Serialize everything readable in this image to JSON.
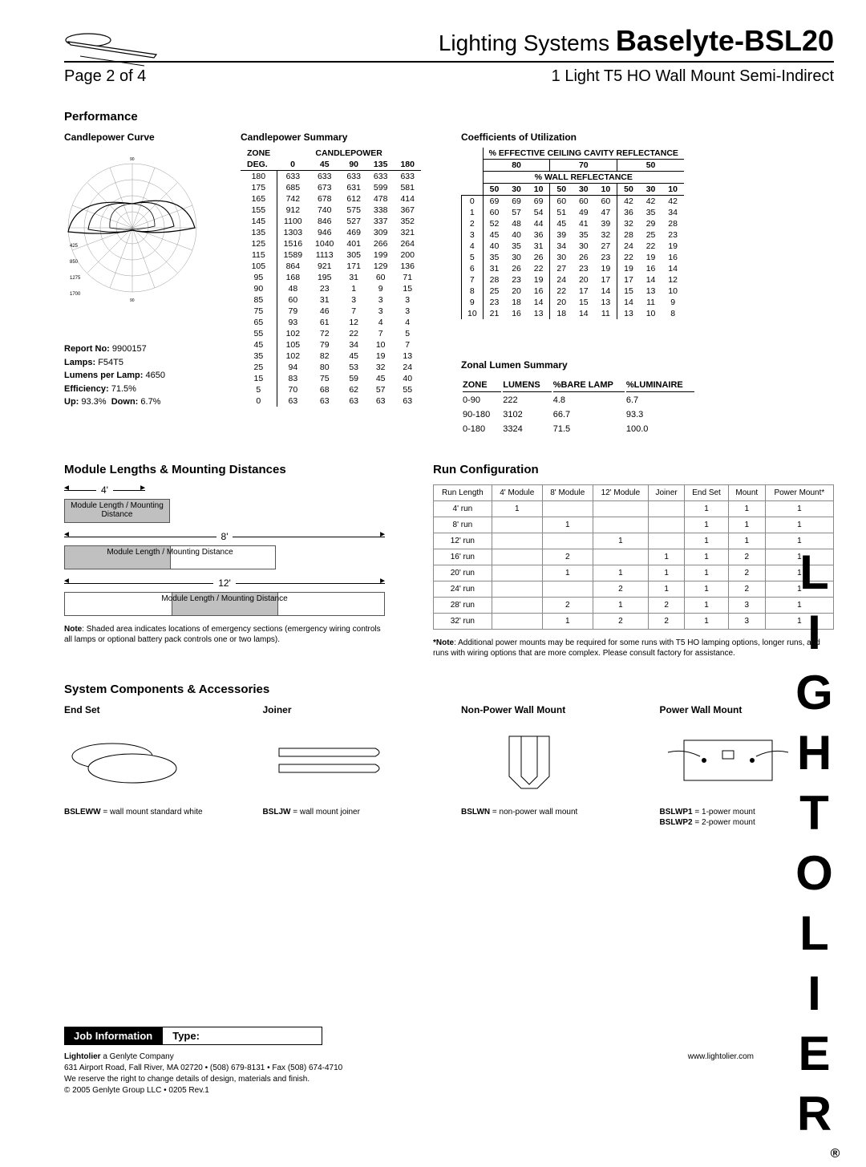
{
  "header": {
    "system_prefix": "Lighting Systems",
    "product": "Baselyte-BSL20",
    "page": "Page 2 of 4",
    "subtitle": "1 Light T5 HO Wall Mount Semi-Indirect"
  },
  "performance": {
    "title": "Performance",
    "curve_title": "Candlepower Curve",
    "curve_radial_labels": [
      "180",
      "170",
      "160",
      "150",
      "140",
      "130",
      "120",
      "110",
      "100",
      "90",
      "80",
      "70",
      "60",
      "50",
      "40",
      "30",
      "20",
      "10",
      "0",
      "10",
      "20",
      "30",
      "40"
    ],
    "curve_ring_labels": [
      "425",
      "850",
      "1275",
      "1700"
    ],
    "report": {
      "no_lbl": "Report No:",
      "no": "9900157",
      "lamps_lbl": "Lamps:",
      "lamps": "F54T5",
      "lpl_lbl": "Lumens per Lamp:",
      "lpl": "4650",
      "eff_lbl": "Efficiency:",
      "eff": "71.5%",
      "up_lbl": "Up:",
      "up": "93.3%",
      "down_lbl": "Down:",
      "down": "6.7%"
    },
    "summary_title": "Candlepower Summary",
    "cp_angles": [
      "0",
      "45",
      "90",
      "135",
      "180"
    ],
    "cp_zone_hdr": "ZONE",
    "cp_deg_hdr": "DEG.",
    "cp_hdr": "CANDLEPOWER",
    "cp_rows": [
      [
        "180",
        "633",
        "633",
        "633",
        "633",
        "633"
      ],
      [
        "175",
        "685",
        "673",
        "631",
        "599",
        "581"
      ],
      [
        "165",
        "742",
        "678",
        "612",
        "478",
        "414"
      ],
      [
        "155",
        "912",
        "740",
        "575",
        "338",
        "367"
      ],
      [
        "145",
        "1100",
        "846",
        "527",
        "337",
        "352"
      ],
      [
        "135",
        "1303",
        "946",
        "469",
        "309",
        "321"
      ],
      [
        "125",
        "1516",
        "1040",
        "401",
        "266",
        "264"
      ],
      [
        "115",
        "1589",
        "1113",
        "305",
        "199",
        "200"
      ],
      [
        "105",
        "864",
        "921",
        "171",
        "129",
        "136"
      ],
      [
        "95",
        "168",
        "195",
        "31",
        "60",
        "71"
      ],
      [
        "90",
        "48",
        "23",
        "1",
        "9",
        "15"
      ],
      [
        "85",
        "60",
        "31",
        "3",
        "3",
        "3"
      ],
      [
        "75",
        "79",
        "46",
        "7",
        "3",
        "3"
      ],
      [
        "65",
        "93",
        "61",
        "12",
        "4",
        "4"
      ],
      [
        "55",
        "102",
        "72",
        "22",
        "7",
        "5"
      ],
      [
        "45",
        "105",
        "79",
        "34",
        "10",
        "7"
      ],
      [
        "35",
        "102",
        "82",
        "45",
        "19",
        "13"
      ],
      [
        "25",
        "94",
        "80",
        "53",
        "32",
        "24"
      ],
      [
        "15",
        "83",
        "75",
        "59",
        "45",
        "40"
      ],
      [
        "5",
        "70",
        "68",
        "62",
        "57",
        "55"
      ],
      [
        "0",
        "63",
        "63",
        "63",
        "63",
        "63"
      ]
    ],
    "cou_title": "Coefficients of Utilization",
    "cou_hdr1": "% EFFECTIVE CEILING CAVITY REFLECTANCE",
    "cou_hdr2": "% WALL REFLECTANCE",
    "cou_ceiling": [
      "80",
      "70",
      "50"
    ],
    "cou_wall": [
      "50",
      "30",
      "10",
      "50",
      "30",
      "10",
      "50",
      "30",
      "10"
    ],
    "cou_rows": [
      [
        "0",
        "69",
        "69",
        "69",
        "60",
        "60",
        "60",
        "42",
        "42",
        "42"
      ],
      [
        "1",
        "60",
        "57",
        "54",
        "51",
        "49",
        "47",
        "36",
        "35",
        "34"
      ],
      [
        "2",
        "52",
        "48",
        "44",
        "45",
        "41",
        "39",
        "32",
        "29",
        "28"
      ],
      [
        "3",
        "45",
        "40",
        "36",
        "39",
        "35",
        "32",
        "28",
        "25",
        "23"
      ],
      [
        "4",
        "40",
        "35",
        "31",
        "34",
        "30",
        "27",
        "24",
        "22",
        "19"
      ],
      [
        "5",
        "35",
        "30",
        "26",
        "30",
        "26",
        "23",
        "22",
        "19",
        "16"
      ],
      [
        "6",
        "31",
        "26",
        "22",
        "27",
        "23",
        "19",
        "19",
        "16",
        "14"
      ],
      [
        "7",
        "28",
        "23",
        "19",
        "24",
        "20",
        "17",
        "17",
        "14",
        "12"
      ],
      [
        "8",
        "25",
        "20",
        "16",
        "22",
        "17",
        "14",
        "15",
        "13",
        "10"
      ],
      [
        "9",
        "23",
        "18",
        "14",
        "20",
        "15",
        "13",
        "14",
        "11",
        "9"
      ],
      [
        "10",
        "21",
        "16",
        "13",
        "18",
        "14",
        "11",
        "13",
        "10",
        "8"
      ]
    ],
    "zonal_title": "Zonal Lumen Summary",
    "zonal_hdr": [
      "ZONE",
      "LUMENS",
      "%BARE LAMP",
      "%LUMINAIRE"
    ],
    "zonal_rows": [
      [
        "0-90",
        "222",
        "4.8",
        "6.7"
      ],
      [
        "90-180",
        "3102",
        "66.7",
        "93.3"
      ],
      [
        "0-180",
        "3324",
        "71.5",
        "100.0"
      ]
    ]
  },
  "modules": {
    "title": "Module Lengths & Mounting Distances",
    "dims": [
      "4'",
      "8'",
      "12'"
    ],
    "label_short": "Module Length / Mounting Distance",
    "label_long": "Module Length / Mounting Distance",
    "note_b": "Note",
    "note": ": Shaded area indicates locations of emergency sections (emergency wiring controls all lamps or optional battery pack controls one or two lamps)."
  },
  "run": {
    "title": "Run Configuration",
    "hdr": [
      "Run Length",
      "4' Module",
      "8' Module",
      "12' Module",
      "Joiner",
      "End Set",
      "Mount",
      "Power Mount*"
    ],
    "rows": [
      [
        "4' run",
        "1",
        "",
        "",
        "",
        "1",
        "1",
        "1"
      ],
      [
        "8' run",
        "",
        "1",
        "",
        "",
        "1",
        "1",
        "1"
      ],
      [
        "12' run",
        "",
        "",
        "1",
        "",
        "1",
        "1",
        "1"
      ],
      [
        "16' run",
        "",
        "2",
        "",
        "1",
        "1",
        "2",
        "1"
      ],
      [
        "20' run",
        "",
        "1",
        "1",
        "1",
        "1",
        "2",
        "1"
      ],
      [
        "24' run",
        "",
        "",
        "2",
        "1",
        "1",
        "2",
        "1"
      ],
      [
        "28' run",
        "",
        "2",
        "1",
        "2",
        "1",
        "3",
        "1"
      ],
      [
        "32' run",
        "",
        "1",
        "2",
        "2",
        "1",
        "3",
        "1"
      ]
    ],
    "note_b": "*Note",
    "note": ": Additional power mounts may be required for some runs with T5 HO lamping options, longer runs, and runs with wiring options that are more complex. Please consult factory for assistance."
  },
  "components": {
    "title": "System Components & Accessories",
    "items": [
      {
        "title": "End Set",
        "code": "BSLEWW",
        "desc": " = wall mount standard white"
      },
      {
        "title": "Joiner",
        "code": "BSLJW",
        "desc": " = wall mount joiner"
      },
      {
        "title": "Non-Power Wall Mount",
        "code": "BSLWN",
        "desc": " = non-power wall mount"
      },
      {
        "title": "Power Wall Mount",
        "code": "BSLWP1",
        "desc": " = 1-power mount",
        "code2": "BSLWP2",
        "desc2": " = 2-power mount"
      }
    ]
  },
  "footer": {
    "job": "Job Information",
    "type": "Type:",
    "brand_b": "Lightolier",
    "brand_rest": " a Genlyte Company",
    "url": "www.lightolier.com",
    "addr": "631 Airport Road, Fall River, MA 02720 • (508) 679-8131 • Fax (508) 674-4710",
    "disclaimer": "We reserve the right to change details of design, materials and finish.",
    "copyright": "© 2005 Genlyte Group LLC • 0205 Rev.1"
  },
  "brand_vertical": "LIGHTOLIER"
}
